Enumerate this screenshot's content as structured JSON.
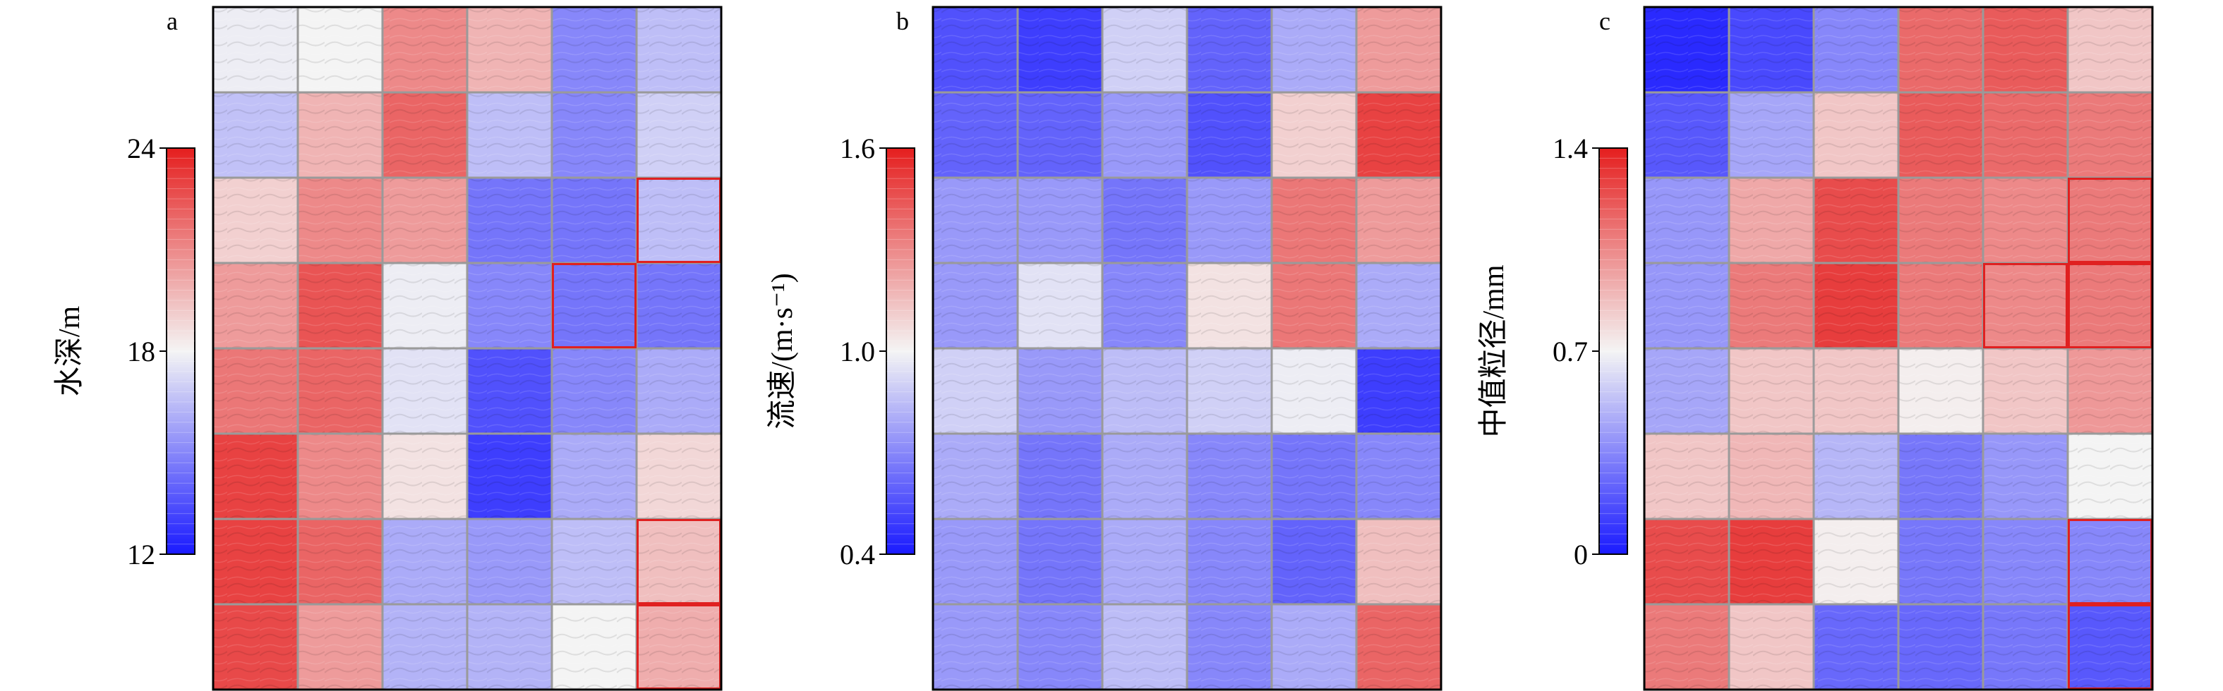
{
  "colors": {
    "low": "#1a1aff",
    "mid": "#f4f4f4",
    "high": "#e51e1e",
    "grid_line": "#9a9a9a",
    "highlight": "#e02020"
  },
  "chart_data": [
    {
      "type": "heatmap",
      "panel": "a",
      "colorbar_label": "水深/m",
      "value_range": [
        12,
        24
      ],
      "ticks": [
        "24",
        "18",
        "12"
      ],
      "tick_values": [
        24,
        18,
        12
      ],
      "rows": 8,
      "cols": 6,
      "values": [
        [
          17.8,
          18.0,
          21.0,
          19.8,
          15.0,
          16.5
        ],
        [
          16.6,
          19.8,
          22.0,
          16.5,
          15.0,
          17.0
        ],
        [
          19.0,
          21.0,
          20.5,
          14.5,
          14.5,
          16.5
        ],
        [
          20.5,
          22.5,
          17.8,
          15.0,
          14.5,
          14.5
        ],
        [
          21.5,
          22.0,
          17.5,
          13.5,
          15.0,
          16.0
        ],
        [
          23.0,
          21.0,
          18.5,
          13.0,
          16.0,
          18.8
        ],
        [
          23.0,
          22.0,
          16.0,
          15.5,
          16.5,
          19.5
        ],
        [
          22.8,
          20.5,
          16.2,
          16.2,
          18.0,
          20.0
        ]
      ],
      "highlighted_cells": [
        [
          2,
          5
        ],
        [
          3,
          4
        ],
        [
          6,
          5
        ],
        [
          7,
          5
        ]
      ]
    },
    {
      "type": "heatmap",
      "panel": "b",
      "colorbar_label": "流速/(m·s⁻¹)",
      "value_range": [
        0.4,
        1.6
      ],
      "ticks": [
        "1.6",
        "1.0",
        "0.4"
      ],
      "tick_values": [
        1.6,
        1.0,
        0.4
      ],
      "rows": 8,
      "cols": 6,
      "values": [
        [
          0.55,
          0.5,
          0.9,
          0.6,
          0.8,
          1.25
        ],
        [
          0.6,
          0.6,
          0.75,
          0.55,
          1.1,
          1.5
        ],
        [
          0.75,
          0.75,
          0.65,
          0.75,
          1.35,
          1.25
        ],
        [
          0.75,
          0.95,
          0.7,
          1.05,
          1.35,
          0.8
        ],
        [
          0.9,
          0.75,
          0.85,
          0.9,
          0.98,
          0.5
        ],
        [
          0.8,
          0.65,
          0.8,
          0.7,
          0.65,
          0.7
        ],
        [
          0.75,
          0.65,
          0.8,
          0.7,
          0.6,
          1.15
        ],
        [
          0.75,
          0.7,
          0.85,
          0.7,
          0.8,
          1.4
        ]
      ],
      "highlighted_cells": []
    },
    {
      "type": "heatmap",
      "panel": "c",
      "colorbar_label": "中值粒径/mm",
      "value_range": [
        0,
        1.4
      ],
      "ticks": [
        "1.4",
        "0.7",
        "0"
      ],
      "tick_values": [
        1.4,
        0.7,
        0
      ],
      "rows": 8,
      "cols": 6,
      "values": [
        [
          0.05,
          0.15,
          0.35,
          1.15,
          1.2,
          0.85
        ],
        [
          0.2,
          0.45,
          0.85,
          1.2,
          1.15,
          1.1
        ],
        [
          0.4,
          0.95,
          1.25,
          1.1,
          1.05,
          1.1
        ],
        [
          0.4,
          1.1,
          1.3,
          1.1,
          1.05,
          1.1
        ],
        [
          0.45,
          0.85,
          0.85,
          0.72,
          0.85,
          1.0
        ],
        [
          0.85,
          0.9,
          0.5,
          0.3,
          0.4,
          0.7
        ],
        [
          1.25,
          1.3,
          0.72,
          0.3,
          0.35,
          0.35
        ],
        [
          1.1,
          0.85,
          0.25,
          0.25,
          0.3,
          0.2
        ]
      ],
      "highlighted_cells": [
        [
          2,
          5
        ],
        [
          3,
          4
        ],
        [
          3,
          5
        ],
        [
          6,
          5
        ],
        [
          7,
          5
        ]
      ]
    }
  ]
}
